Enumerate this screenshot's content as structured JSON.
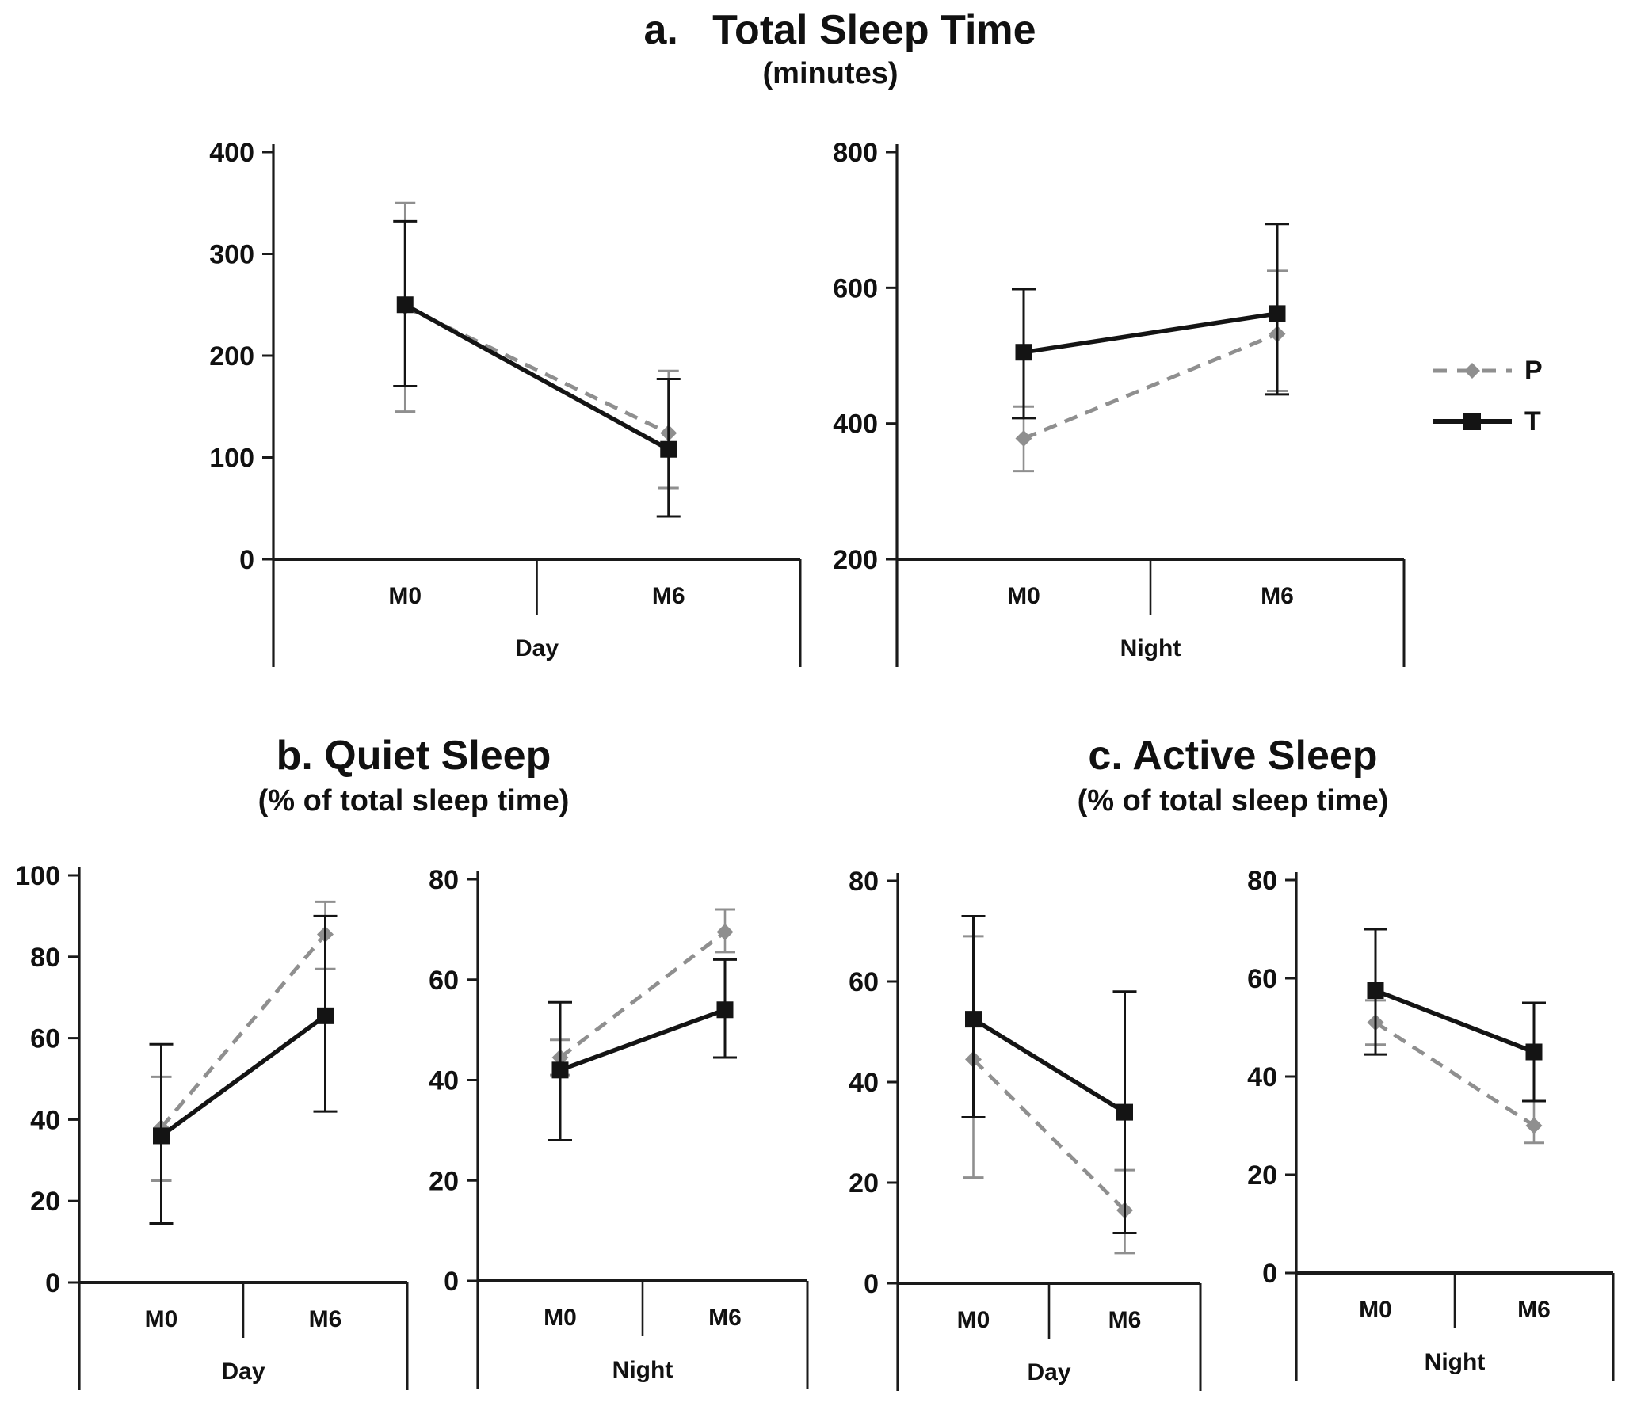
{
  "chart_data": {
    "type": "line",
    "panels": [
      {
        "id": "a",
        "title": "a.   Total Sleep Time",
        "subtitle": "(minutes)",
        "subplots": [
          {
            "group_label": "Day",
            "ylim": [
              0,
              400
            ],
            "yticks": [
              0,
              100,
              200,
              300,
              400
            ],
            "categories": [
              "M0",
              "M6"
            ],
            "series": [
              {
                "name": "P",
                "values": [
                  248,
                  124
                ],
                "err_low": [
                  145,
                  70
                ],
                "err_high": [
                  350,
                  185
                ]
              },
              {
                "name": "T",
                "values": [
                  250,
                  108
                ],
                "err_low": [
                  170,
                  42
                ],
                "err_high": [
                  332,
                  177
                ]
              }
            ]
          },
          {
            "group_label": "Night",
            "ylim": [
              200,
              800
            ],
            "yticks": [
              200,
              400,
              600,
              800
            ],
            "categories": [
              "M0",
              "M6"
            ],
            "series": [
              {
                "name": "P",
                "values": [
                  378,
                  532
                ],
                "err_low": [
                  330,
                  448
                ],
                "err_high": [
                  425,
                  625
                ]
              },
              {
                "name": "T",
                "values": [
                  505,
                  562
                ],
                "err_low": [
                  408,
                  443
                ],
                "err_high": [
                  598,
                  694
                ]
              }
            ]
          }
        ]
      },
      {
        "id": "b",
        "title": "b. Quiet Sleep",
        "subtitle": "(% of total sleep time)",
        "subplots": [
          {
            "group_label": "Day",
            "ylim": [
              0,
              100
            ],
            "yticks": [
              0,
              20,
              40,
              60,
              80,
              100
            ],
            "categories": [
              "M0",
              "M6"
            ],
            "series": [
              {
                "name": "P",
                "values": [
                  38,
                  85.5
                ],
                "err_low": [
                  25,
                  77
                ],
                "err_high": [
                  50.5,
                  93.5
                ]
              },
              {
                "name": "T",
                "values": [
                  36,
                  65.5
                ],
                "err_low": [
                  14.5,
                  42
                ],
                "err_high": [
                  58.5,
                  90
                ]
              }
            ]
          },
          {
            "group_label": "Night",
            "ylim": [
              0,
              80
            ],
            "yticks": [
              0,
              20,
              40,
              60,
              80
            ],
            "categories": [
              "M0",
              "M6"
            ],
            "series": [
              {
                "name": "P",
                "values": [
                  44.5,
                  69.5
                ],
                "err_low": [
                  41,
                  65.5
                ],
                "err_high": [
                  48,
                  74
                ]
              },
              {
                "name": "T",
                "values": [
                  42,
                  54
                ],
                "err_low": [
                  28,
                  44.5
                ],
                "err_high": [
                  55.5,
                  64
                ]
              }
            ]
          }
        ]
      },
      {
        "id": "c",
        "title": "c. Active Sleep",
        "subtitle": "(% of total sleep time)",
        "subplots": [
          {
            "group_label": "Day",
            "ylim": [
              0,
              80
            ],
            "yticks": [
              0,
              20,
              40,
              60,
              80
            ],
            "categories": [
              "M0",
              "M6"
            ],
            "series": [
              {
                "name": "P",
                "values": [
                  44.5,
                  14.5
                ],
                "err_low": [
                  21,
                  6
                ],
                "err_high": [
                  69,
                  22.5
                ]
              },
              {
                "name": "T",
                "values": [
                  52.5,
                  34
                ],
                "err_low": [
                  33,
                  10
                ],
                "err_high": [
                  73,
                  58
                ]
              }
            ]
          },
          {
            "group_label": "Night",
            "ylim": [
              0,
              80
            ],
            "yticks": [
              0,
              20,
              40,
              60,
              80
            ],
            "categories": [
              "M0",
              "M6"
            ],
            "series": [
              {
                "name": "P",
                "values": [
                  51,
                  30
                ],
                "err_low": [
                  46.5,
                  26.5
                ],
                "err_high": [
                  55.5,
                  35
                ]
              },
              {
                "name": "T",
                "values": [
                  57.5,
                  45
                ],
                "err_low": [
                  44.5,
                  35
                ],
                "err_high": [
                  70,
                  55
                ]
              }
            ]
          }
        ]
      }
    ],
    "legend": {
      "position": "right",
      "items": [
        {
          "label": "P",
          "line": "dashed",
          "marker": "diamond",
          "color": "#8f8f8f"
        },
        {
          "label": "T",
          "line": "solid",
          "marker": "square",
          "color": "#141414"
        }
      ]
    },
    "colors": {
      "p_series": "#8f8f8f",
      "t_series": "#141414",
      "axis": "#1a1a1a",
      "text": "#111111"
    }
  }
}
